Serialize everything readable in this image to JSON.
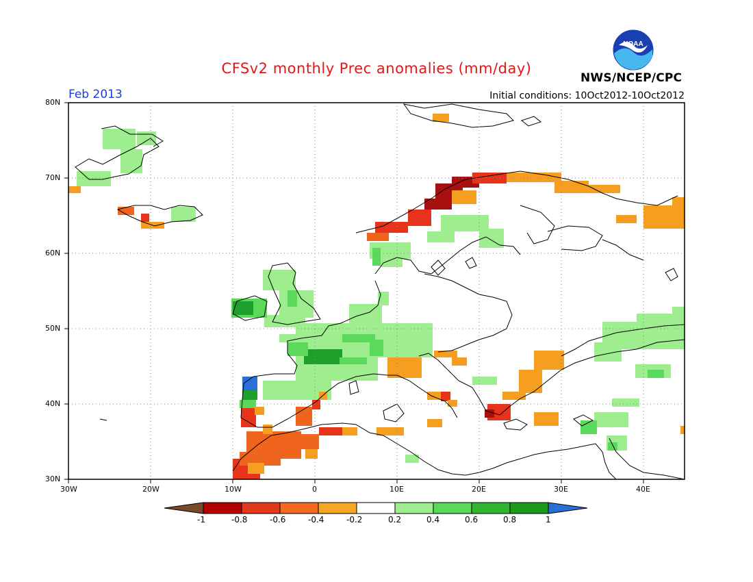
{
  "header": {
    "title": "CFSv2 monthly Prec anomalies (mm/day)",
    "month": "Feb 2013",
    "initial_conditions": "Initial conditions: 10Oct2012-10Oct2012",
    "agency": "NWS/NCEP/CPC",
    "logo_text": "NOAA"
  },
  "axes": {
    "lat_labels": [
      "80N",
      "70N",
      "60N",
      "50N",
      "40N",
      "30N"
    ],
    "lon_labels": [
      "30W",
      "20W",
      "10W",
      "0",
      "10E",
      "20E",
      "30E",
      "40E"
    ],
    "lon_range": [
      -30,
      45
    ],
    "lat_range": [
      30,
      80
    ],
    "grid": true
  },
  "legend": {
    "labels": [
      "-1",
      "-0.8",
      "-0.6",
      "-0.4",
      "-0.2",
      "0.2",
      "0.4",
      "0.6",
      "0.8",
      "1"
    ],
    "colors": [
      "#7a4a26",
      "#b30000",
      "#e03a1a",
      "#f46a22",
      "#f5a623",
      "#ffffff",
      "#9eed8e",
      "#5ad95a",
      "#2fb52f",
      "#1a9a1a",
      "#2a6fd8"
    ]
  },
  "colors": {
    "dark_red": "#a80f0f",
    "red": "#e8331c",
    "orange_red": "#f0651e",
    "orange": "#f59e1f",
    "light_green": "#9eed8e",
    "green": "#5ad95a",
    "dark_green": "#1e9e2a",
    "blue": "#2a6fd8"
  }
}
